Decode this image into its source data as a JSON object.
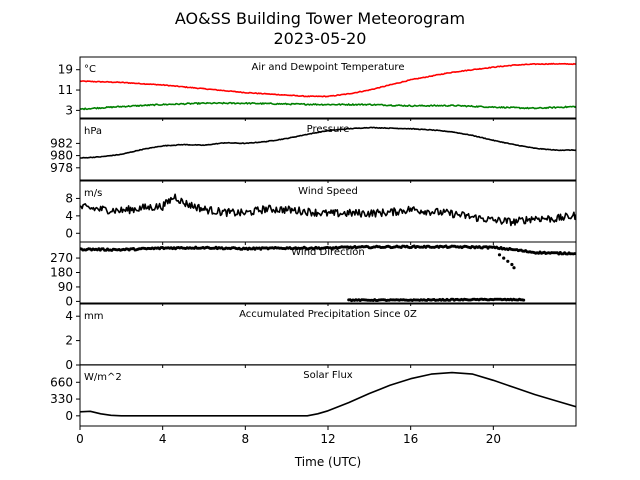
{
  "title_line1": "AO&SS Building Tower Meteorogram",
  "title_line2": "2023-05-20",
  "xlabel": "Time (UTC)",
  "x_ticks": [
    0,
    4,
    8,
    12,
    16,
    20
  ],
  "xlim": [
    0,
    24
  ],
  "chart_data": [
    {
      "type": "line",
      "title": "Air and Dewpoint Temperature",
      "unit": "°C",
      "ylim": [
        0,
        24
      ],
      "y_ticks": [
        3,
        11,
        19
      ],
      "series": [
        {
          "color": "#ff0000",
          "noise": 0.15,
          "points": [
            [
              0,
              14.5
            ],
            [
              2,
              14
            ],
            [
              4,
              13
            ],
            [
              6,
              11.5
            ],
            [
              8,
              10
            ],
            [
              10,
              9
            ],
            [
              11,
              8.5
            ],
            [
              12,
              8.5
            ],
            [
              13,
              9.5
            ],
            [
              14,
              11
            ],
            [
              15,
              13
            ],
            [
              16,
              15
            ],
            [
              17,
              16.5
            ],
            [
              18,
              18
            ],
            [
              19,
              19
            ],
            [
              20,
              20
            ],
            [
              21,
              20.8
            ],
            [
              22,
              21.2
            ],
            [
              23,
              21.3
            ],
            [
              24,
              21.2
            ]
          ]
        },
        {
          "color": "#008000",
          "noise": 0.25,
          "points": [
            [
              0,
              3.5
            ],
            [
              2,
              4.5
            ],
            [
              4,
              5.3
            ],
            [
              6,
              5.8
            ],
            [
              8,
              5.8
            ],
            [
              10,
              5.5
            ],
            [
              12,
              5.3
            ],
            [
              14,
              5.3
            ],
            [
              16,
              4.8
            ],
            [
              18,
              4.9
            ],
            [
              20,
              4.3
            ],
            [
              22,
              3.8
            ],
            [
              24,
              4.5
            ]
          ]
        }
      ]
    },
    {
      "type": "line",
      "title": "Pressure",
      "unit": "hPa",
      "ylim": [
        976,
        986
      ],
      "y_ticks": [
        978,
        980,
        982
      ],
      "series": [
        {
          "color": "#000000",
          "noise": 0.05,
          "points": [
            [
              0,
              979.6
            ],
            [
              1,
              979.8
            ],
            [
              2,
              980.2
            ],
            [
              3,
              981
            ],
            [
              4,
              981.6
            ],
            [
              5,
              981.8
            ],
            [
              6,
              981.7
            ],
            [
              7,
              982.1
            ],
            [
              8,
              982
            ],
            [
              9,
              982.3
            ],
            [
              10,
              982.8
            ],
            [
              11,
              983.5
            ],
            [
              12,
              984.1
            ],
            [
              13,
              984.4
            ],
            [
              14,
              984.6
            ],
            [
              15,
              984.5
            ],
            [
              16,
              984.4
            ],
            [
              17,
              984.2
            ],
            [
              18,
              983.9
            ],
            [
              19,
              983.3
            ],
            [
              20,
              982.5
            ],
            [
              21,
              981.8
            ],
            [
              22,
              981.2
            ],
            [
              23,
              980.9
            ],
            [
              24,
              980.9
            ]
          ]
        }
      ]
    },
    {
      "type": "line",
      "title": "Wind Speed",
      "unit": "m/s",
      "ylim": [
        -2,
        12
      ],
      "y_ticks": [
        0,
        4,
        8
      ],
      "series": [
        {
          "color": "#000000",
          "noise": 0.9,
          "points": [
            [
              0,
              6
            ],
            [
              1,
              5.5
            ],
            [
              2,
              5.2
            ],
            [
              3,
              5.8
            ],
            [
              4,
              6.2
            ],
            [
              4.6,
              8.5
            ],
            [
              5,
              7
            ],
            [
              6,
              5.5
            ],
            [
              7,
              4.8
            ],
            [
              8,
              4.6
            ],
            [
              9,
              5.6
            ],
            [
              10,
              5.4
            ],
            [
              11,
              5
            ],
            [
              12,
              4.5
            ],
            [
              13,
              4.6
            ],
            [
              14,
              4.6
            ],
            [
              15,
              4.8
            ],
            [
              16,
              5.5
            ],
            [
              17,
              5
            ],
            [
              18,
              4.5
            ],
            [
              19,
              3.7
            ],
            [
              20,
              3
            ],
            [
              21,
              2.6
            ],
            [
              22,
              3.5
            ],
            [
              23,
              3.3
            ],
            [
              24,
              4.1
            ]
          ]
        }
      ]
    },
    {
      "type": "scatter",
      "title": "Wind Direction",
      "unit": "",
      "ylim": [
        -10,
        370
      ],
      "y_ticks": [
        0,
        90,
        180,
        270
      ],
      "series": [
        {
          "color": "#000000",
          "noise": 5,
          "points": [
            [
              0,
              325
            ],
            [
              2,
              322
            ],
            [
              4,
              332
            ],
            [
              6,
              335
            ],
            [
              8,
              328
            ],
            [
              10,
              332
            ],
            [
              12,
              332
            ],
            [
              13,
              337
            ],
            [
              14,
              338
            ],
            [
              15,
              340
            ],
            [
              16,
              340
            ],
            [
              17,
              340
            ],
            [
              18,
              340
            ],
            [
              19,
              338
            ],
            [
              20,
              336
            ],
            [
              21,
              322
            ],
            [
              22,
              305
            ],
            [
              23,
              300
            ],
            [
              24,
              300
            ]
          ]
        },
        {
          "color": "#000000",
          "noise": 3,
          "points": [
            [
              13,
              8
            ],
            [
              14,
              8
            ],
            [
              15,
              8
            ],
            [
              16,
              8
            ],
            [
              17,
              9
            ],
            [
              18,
              10
            ],
            [
              19,
              11
            ],
            [
              20,
              12
            ],
            [
              21.5,
              10
            ]
          ]
        },
        {
          "color": "#000000",
          "noise": 0,
          "points": [
            [
              20.3,
              290
            ],
            [
              20.5,
              270
            ],
            [
              20.7,
              250
            ],
            [
              20.9,
              230
            ],
            [
              21.0,
              210
            ]
          ]
        }
      ]
    },
    {
      "type": "line",
      "title": "Accumulated Precipitation Since 0Z",
      "unit": "mm",
      "ylim": [
        0,
        5
      ],
      "y_ticks": [
        0,
        2,
        4
      ],
      "series": [
        {
          "color": "#000000",
          "noise": 0,
          "points": [
            [
              0,
              0
            ],
            [
              24,
              0
            ]
          ]
        }
      ]
    },
    {
      "type": "line",
      "title": "Solar Flux",
      "unit": "W/m^2",
      "ylim": [
        -200,
        1000
      ],
      "y_ticks": [
        0,
        330,
        660
      ],
      "series": [
        {
          "color": "#000000",
          "noise": 0,
          "points": [
            [
              0,
              80
            ],
            [
              0.5,
              90
            ],
            [
              1,
              40
            ],
            [
              1.5,
              10
            ],
            [
              2,
              0
            ],
            [
              4,
              0
            ],
            [
              6,
              0
            ],
            [
              8,
              0
            ],
            [
              10,
              0
            ],
            [
              11,
              0
            ],
            [
              11.5,
              40
            ],
            [
              12,
              100
            ],
            [
              13,
              260
            ],
            [
              14,
              440
            ],
            [
              15,
              600
            ],
            [
              16,
              730
            ],
            [
              17,
              820
            ],
            [
              18,
              850
            ],
            [
              19,
              820
            ],
            [
              20,
              700
            ],
            [
              21,
              560
            ],
            [
              22,
              420
            ],
            [
              23,
              300
            ],
            [
              24,
              180
            ]
          ]
        }
      ]
    }
  ]
}
